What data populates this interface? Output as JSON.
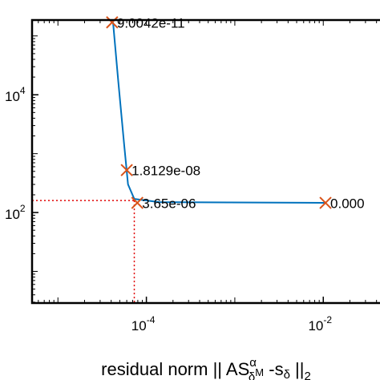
{
  "chart_data": {
    "type": "line",
    "log_x": true,
    "log_y": true,
    "xlabel": {
      "text": "residual norm || AS",
      "sup": "α",
      "sub": "δ",
      "sub_m": "M",
      "text2": " -s",
      "sub2": "δ",
      "text3": " ||",
      "sub3": "2"
    },
    "xlim": [
      5.1e-06,
      0.042
    ],
    "ylim": [
      2.9,
      186000
    ],
    "xticks": [
      {
        "value": 0.0001,
        "label": "10",
        "exponent": "-4"
      },
      {
        "value": 0.01,
        "label": "10",
        "exponent": "-2"
      }
    ],
    "yticks": [
      {
        "value": 100,
        "label": "10",
        "exponent": "2"
      },
      {
        "value": 10000,
        "label": "10",
        "exponent": "4"
      }
    ],
    "series": [
      {
        "color": "#0072bd",
        "x": [
          4.2e-05,
          4.8e-05,
          5.6e-05,
          6.2e-05,
          7.3e-05,
          0.00014,
          0.0106
        ],
        "y": [
          170000,
          17600,
          1450,
          300,
          170,
          150,
          146
        ]
      }
    ],
    "points": {
      "color": "#d95319",
      "x": [
        4.1e-05,
        6e-05,
        7.9e-05,
        0.0106
      ],
      "y": [
        170000,
        525,
        146,
        146
      ],
      "labels": [
        "9.0042e-11",
        "1.8129e-08",
        "3.65e-06",
        "0.000"
      ]
    },
    "corner": {
      "color": "#e00000",
      "x": 7.3e-05,
      "y": 160
    }
  }
}
